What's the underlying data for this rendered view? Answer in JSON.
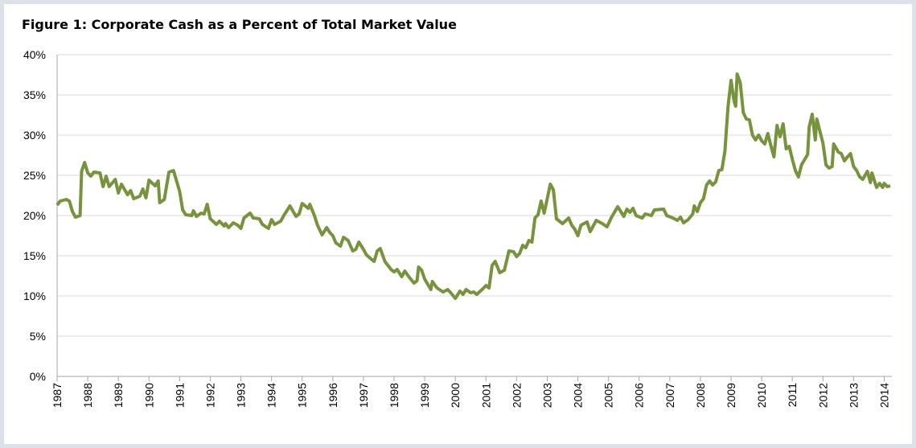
{
  "chart_data": {
    "type": "line",
    "title": "Figure 1: Corporate Cash as a Percent of Total Market Value",
    "color": "#77933c",
    "grid": true,
    "xlim": [
      1987,
      2014.25
    ],
    "xticks": [
      1987,
      1988,
      1989,
      1990,
      1991,
      1992,
      1993,
      1994,
      1995,
      1996,
      1997,
      1998,
      1999,
      2000,
      2001,
      2002,
      2003,
      2004,
      2005,
      2006,
      2007,
      2008,
      2009,
      2010,
      2011,
      2012,
      2013,
      2014
    ],
    "ylim": [
      0,
      40
    ],
    "yticks": [
      {
        "value": 0,
        "label": "0%"
      },
      {
        "value": 5,
        "label": "5%"
      },
      {
        "value": 10,
        "label": "10%"
      },
      {
        "value": 15,
        "label": "15%"
      },
      {
        "value": 20,
        "label": "20%"
      },
      {
        "value": 25,
        "label": "25%"
      },
      {
        "value": 30,
        "label": "30%"
      },
      {
        "value": 35,
        "label": "35%"
      },
      {
        "value": 40,
        "label": "40%"
      }
    ],
    "x": [
      1987.0,
      1987.1,
      1987.3,
      1987.4,
      1987.5,
      1987.6,
      1987.75,
      1987.8,
      1987.9,
      1988.0,
      1988.1,
      1988.2,
      1988.4,
      1988.5,
      1988.6,
      1988.7,
      1988.9,
      1989.0,
      1989.1,
      1989.3,
      1989.4,
      1989.5,
      1989.7,
      1989.8,
      1989.9,
      1990.0,
      1990.2,
      1990.3,
      1990.35,
      1990.5,
      1990.65,
      1990.8,
      1991.0,
      1991.1,
      1991.2,
      1991.4,
      1991.45,
      1991.55,
      1991.7,
      1991.8,
      1991.9,
      1992.0,
      1992.2,
      1992.3,
      1992.45,
      1992.5,
      1992.6,
      1992.75,
      1992.9,
      1993.0,
      1993.1,
      1993.3,
      1993.4,
      1993.6,
      1993.7,
      1993.9,
      1994.0,
      1994.1,
      1994.3,
      1994.4,
      1994.6,
      1994.8,
      1994.9,
      1995.0,
      1995.2,
      1995.25,
      1995.4,
      1995.5,
      1995.65,
      1995.8,
      1995.9,
      1996.0,
      1996.1,
      1996.25,
      1996.35,
      1996.5,
      1996.65,
      1996.75,
      1996.85,
      1997.0,
      1997.1,
      1997.25,
      1997.35,
      1997.45,
      1997.55,
      1997.7,
      1997.9,
      1998.0,
      1998.1,
      1998.25,
      1998.35,
      1998.5,
      1998.65,
      1998.75,
      1998.8,
      1998.9,
      1999.0,
      1999.2,
      1999.25,
      1999.4,
      1999.6,
      1999.75,
      1999.85,
      2000.0,
      2000.15,
      2000.25,
      2000.35,
      2000.5,
      2000.6,
      2000.7,
      2000.9,
      2001.0,
      2001.1,
      2001.2,
      2001.3,
      2001.45,
      2001.6,
      2001.75,
      2001.9,
      2002.0,
      2002.1,
      2002.2,
      2002.3,
      2002.4,
      2002.5,
      2002.6,
      2002.7,
      2002.8,
      2002.9,
      2003.0,
      2003.1,
      2003.2,
      2003.3,
      2003.5,
      2003.7,
      2003.8,
      2003.9,
      2004.0,
      2004.1,
      2004.3,
      2004.4,
      2004.6,
      2004.8,
      2004.95,
      2005.1,
      2005.3,
      2005.5,
      2005.6,
      2005.7,
      2005.8,
      2005.9,
      2006.1,
      2006.2,
      2006.4,
      2006.5,
      2006.8,
      2006.9,
      2007.1,
      2007.25,
      2007.35,
      2007.45,
      2007.6,
      2007.75,
      2007.8,
      2007.9,
      2008.0,
      2008.1,
      2008.2,
      2008.3,
      2008.4,
      2008.5,
      2008.6,
      2008.7,
      2008.8,
      2008.9,
      2009.0,
      2009.1,
      2009.15,
      2009.2,
      2009.3,
      2009.4,
      2009.5,
      2009.6,
      2009.7,
      2009.8,
      2009.9,
      2010.0,
      2010.1,
      2010.2,
      2010.3,
      2010.4,
      2010.5,
      2010.6,
      2010.7,
      2010.8,
      2010.9,
      2011.0,
      2011.1,
      2011.2,
      2011.3,
      2011.5,
      2011.55,
      2011.65,
      2011.75,
      2011.8,
      2011.9,
      2012.0,
      2012.1,
      2012.2,
      2012.3,
      2012.35,
      2012.5,
      2012.6,
      2012.7,
      2012.8,
      2012.9,
      2013.0,
      2013.1,
      2013.2,
      2013.3,
      2013.45,
      2013.55,
      2013.6,
      2013.75,
      2013.85,
      2013.95,
      2014.0,
      2014.1,
      2014.2
    ],
    "values": [
      21.3,
      21.8,
      22.0,
      21.8,
      20.5,
      19.8,
      20.0,
      25.5,
      26.6,
      25.3,
      24.9,
      25.4,
      25.3,
      23.6,
      24.9,
      23.6,
      24.5,
      22.8,
      23.9,
      22.6,
      23.1,
      22.1,
      22.4,
      23.3,
      22.2,
      24.4,
      23.7,
      24.3,
      21.6,
      22.0,
      25.4,
      25.6,
      23.0,
      20.7,
      20.1,
      20.0,
      20.6,
      19.9,
      20.3,
      20.2,
      21.4,
      19.6,
      18.9,
      19.3,
      18.7,
      19.0,
      18.5,
      19.1,
      18.8,
      18.4,
      19.7,
      20.3,
      19.7,
      19.6,
      18.9,
      18.4,
      19.5,
      18.9,
      19.3,
      20.0,
      21.2,
      19.9,
      20.2,
      21.5,
      20.9,
      21.4,
      20.0,
      18.8,
      17.6,
      18.5,
      17.9,
      17.5,
      16.6,
      16.2,
      17.3,
      16.9,
      15.6,
      15.8,
      16.7,
      15.8,
      15.1,
      14.6,
      14.3,
      15.6,
      15.9,
      14.3,
      13.3,
      13.0,
      13.3,
      12.4,
      13.1,
      12.3,
      11.6,
      11.9,
      13.6,
      13.2,
      12.1,
      10.8,
      11.8,
      11.0,
      10.5,
      10.8,
      10.4,
      9.7,
      10.6,
      10.2,
      10.8,
      10.4,
      10.5,
      10.2,
      10.9,
      11.3,
      11.0,
      13.8,
      14.3,
      12.9,
      13.2,
      15.6,
      15.5,
      14.9,
      15.3,
      16.3,
      16.0,
      16.9,
      16.7,
      19.7,
      20.1,
      21.8,
      20.3,
      22.1,
      23.9,
      23.2,
      19.6,
      19.0,
      19.7,
      18.8,
      18.3,
      17.5,
      18.8,
      19.2,
      18.0,
      19.4,
      19.0,
      18.6,
      19.8,
      21.1,
      19.9,
      20.8,
      20.4,
      20.9,
      20.0,
      19.7,
      20.2,
      20.0,
      20.7,
      20.8,
      20.0,
      19.7,
      19.4,
      19.8,
      19.1,
      19.5,
      20.2,
      21.2,
      20.5,
      21.6,
      22.1,
      23.8,
      24.3,
      23.8,
      24.2,
      25.6,
      25.7,
      28.0,
      33.5,
      36.8,
      34.2,
      33.6,
      37.6,
      36.5,
      32.8,
      32.0,
      31.9,
      30.0,
      29.4,
      30.0,
      29.3,
      28.9,
      30.2,
      28.7,
      27.3,
      31.2,
      29.8,
      31.4,
      28.3,
      28.6,
      27.0,
      25.6,
      24.8,
      26.3,
      27.6,
      31.0,
      32.6,
      29.4,
      32.0,
      30.5,
      29.0,
      26.3,
      25.9,
      26.1,
      28.9,
      27.9,
      27.7,
      26.8,
      27.3,
      27.7,
      26.1,
      25.6,
      24.8,
      24.5,
      25.5,
      24.1,
      25.3,
      23.5,
      24.0,
      23.5,
      24.0,
      23.6,
      23.7
    ]
  }
}
